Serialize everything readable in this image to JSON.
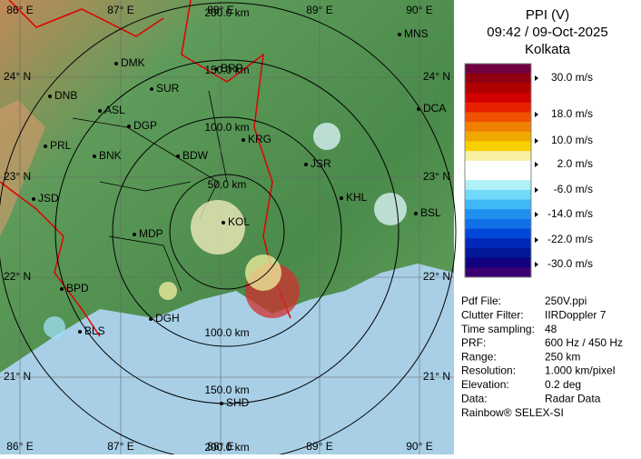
{
  "header": {
    "title": "PPI (V)",
    "time": "09:42 / 09-Oct-2025",
    "station": "Kolkata"
  },
  "legend": {
    "labels": [
      "30.0 m/s",
      "18.0 m/s",
      "10.0 m/s",
      "2.0 m/s",
      "-6.0 m/s",
      "-14.0 m/s",
      "-22.0 m/s",
      "-30.0 m/s"
    ],
    "colors": [
      "#700040",
      "#900010",
      "#b00000",
      "#d00000",
      "#e82000",
      "#f05000",
      "#f08000",
      "#f0a800",
      "#f8d000",
      "#f8f0a0",
      "#ffffff",
      "#ffffff",
      "#b0f0f8",
      "#70d8f8",
      "#40b8f8",
      "#2090f0",
      "#1070e8",
      "#0048d8",
      "#0028b8",
      "#001898",
      "#100080",
      "#380070"
    ]
  },
  "info": {
    "rows": [
      [
        "Pdf File:",
        "250V.ppi"
      ],
      [
        "Clutter Filter:",
        "IIRDoppler 7"
      ],
      [
        "Time sampling:",
        "48"
      ],
      [
        "PRF:",
        "600 Hz / 450 Hz"
      ],
      [
        "Range:",
        "250 km"
      ],
      [
        "Resolution:",
        "1.000 km/pixel"
      ],
      [
        "Elevation:",
        "0.2 deg"
      ],
      [
        "Data:",
        "Radar Data"
      ]
    ]
  },
  "footer": "Rainbow® SELEX-SI",
  "map": {
    "longitudes": [
      "86° E",
      "87° E",
      "88° E",
      "89° E",
      "90° E"
    ],
    "latitudes": [
      "24° N",
      "23° N",
      "22° N",
      "21° N"
    ],
    "rings": [
      "50.0 km",
      "100.0 km",
      "150.0 km",
      "200.0 km"
    ],
    "cities": [
      "MNS",
      "DMK",
      "BRP",
      "DNB",
      "SUR",
      "ASL",
      "DGP",
      "KRG",
      "PRL",
      "BNK",
      "BDW",
      "JSR",
      "KHL",
      "JSD",
      "DCA",
      "BSL",
      "MDP",
      "KOL",
      "BPD",
      "BLS",
      "DGH",
      "SHD"
    ]
  }
}
